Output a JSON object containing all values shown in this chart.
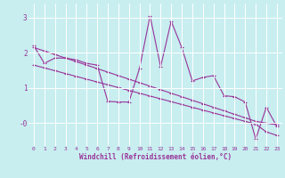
{
  "xlabel": "Windchill (Refroidissement éolien,°C)",
  "xlim": [
    -0.5,
    23.5
  ],
  "ylim": [
    -0.65,
    3.4
  ],
  "yticks": [
    3,
    2,
    1,
    0
  ],
  "ytick_labels": [
    "3",
    "2",
    "1",
    "-0"
  ],
  "xticks": [
    0,
    1,
    2,
    3,
    4,
    5,
    6,
    7,
    8,
    9,
    10,
    11,
    12,
    13,
    14,
    15,
    16,
    17,
    18,
    19,
    20,
    21,
    22,
    23
  ],
  "bg_color": "#c8eef0",
  "grid_color": "#ffffff",
  "line_color": "#993399",
  "series1": [
    2.2,
    1.7,
    1.85,
    1.85,
    1.8,
    1.7,
    1.65,
    0.62,
    0.6,
    0.6,
    1.55,
    3.05,
    1.6,
    2.9,
    2.15,
    1.2,
    1.3,
    1.35,
    0.78,
    0.75,
    0.6,
    -0.45,
    0.45,
    -0.1
  ],
  "series2": [
    2.15,
    2.05,
    1.95,
    1.85,
    1.75,
    1.65,
    1.55,
    1.45,
    1.35,
    1.25,
    1.15,
    1.05,
    0.95,
    0.85,
    0.75,
    0.65,
    0.55,
    0.45,
    0.35,
    0.25,
    0.15,
    0.05,
    -0.0,
    -0.05
  ],
  "series3": [
    1.65,
    1.57,
    1.49,
    1.41,
    1.33,
    1.25,
    1.17,
    1.09,
    1.01,
    0.93,
    0.85,
    0.77,
    0.69,
    0.61,
    0.53,
    0.45,
    0.37,
    0.29,
    0.21,
    0.13,
    0.05,
    -0.03,
    -0.25,
    -0.35
  ]
}
